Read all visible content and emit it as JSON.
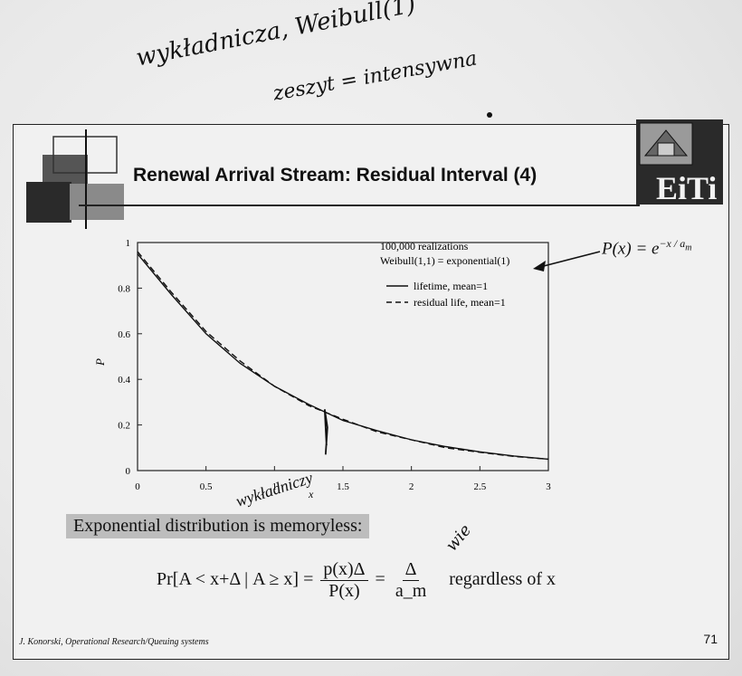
{
  "handwriting": {
    "line1": "wykładnicza, Weibull(1)",
    "line2": "zeszyt = intensywna",
    "note_x": "wykładniczy",
    "note_formula": "wie"
  },
  "slide": {
    "title": "Renewal Arrival Stream: Residual Interval (4)",
    "logo_text": "EiTi",
    "annotation_formula": "P(x) = e^{-x/a_m}",
    "callout": "Exponential distribution is memoryless:",
    "formula": {
      "lhs": "Pr[A < x+Δ | A ≥ x] =",
      "frac1_num": "p(x)Δ",
      "frac1_den": "P(x)",
      "eq": "=",
      "frac2_num": "Δ",
      "frac2_den": "a_m",
      "tail": "regardless of x"
    },
    "footer_left": "J. Konorski, Operational Research/Queuing systems",
    "page_number": "71"
  },
  "chart_data": {
    "type": "line",
    "xlabel": "x",
    "ylabel": "P",
    "xlim": [
      0,
      3
    ],
    "ylim": [
      0,
      1
    ],
    "xticks": [
      "0",
      "0.5",
      "1",
      "1.5",
      "2",
      "2.5",
      "3"
    ],
    "yticks": [
      "0",
      "0.2",
      "0.4",
      "0.6",
      "0.8",
      "1"
    ],
    "annotations": [
      "100,000 realizations",
      "Weibull(1,1) = exponential(1)"
    ],
    "legend": "top-right",
    "series": [
      {
        "name": "lifetime, mean=1",
        "style": "solid",
        "x": [
          0,
          0.25,
          0.5,
          0.75,
          1,
          1.25,
          1.5,
          1.75,
          2,
          2.25,
          2.5,
          2.75,
          3
        ],
        "values": [
          0.95,
          0.77,
          0.6,
          0.47,
          0.37,
          0.29,
          0.22,
          0.175,
          0.135,
          0.105,
          0.082,
          0.064,
          0.05
        ]
      },
      {
        "name": "residual life, mean=1",
        "style": "dashed",
        "x": [
          0,
          0.25,
          0.5,
          0.75,
          1,
          1.25,
          1.5,
          1.75,
          2,
          2.25,
          2.5,
          2.75,
          3
        ],
        "values": [
          0.96,
          0.78,
          0.61,
          0.48,
          0.37,
          0.285,
          0.225,
          0.17,
          0.135,
          0.1,
          0.08,
          0.062,
          0.05
        ]
      }
    ]
  }
}
